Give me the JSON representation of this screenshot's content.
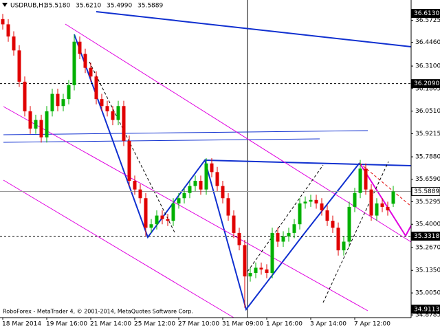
{
  "chart_data": {
    "type": "candlestick",
    "title": "USDRUB,H1",
    "info_labels": [
      "35.5180",
      "35.6210",
      "35.4990",
      "35.5889"
    ],
    "copyright": "RoboForex - MetaTrader 4, © 2001-2014, MetaQuotes Software Corp.",
    "categories": [
      "18 Mar 2014",
      null,
      null,
      null,
      null,
      null,
      null,
      null,
      "19 Mar 16:00",
      null,
      null,
      null,
      null,
      null,
      null,
      null,
      "21 Mar 14:00",
      null,
      null,
      null,
      null,
      null,
      null,
      null,
      "25 Mar 12:00",
      null,
      null,
      null,
      null,
      null,
      null,
      null,
      "27 Mar 10:00",
      null,
      null,
      null,
      null,
      null,
      null,
      null,
      "31 Mar 09:00",
      null,
      null,
      null,
      null,
      null,
      null,
      null,
      "1 Apr 16:00",
      null,
      null,
      null,
      null,
      null,
      null,
      null,
      "3 Apr 14:00",
      null,
      null,
      null,
      null,
      null,
      null,
      null,
      "7 Apr 12:00",
      null,
      null,
      null,
      null,
      null,
      null,
      null
    ],
    "open": [
      36.58,
      36.55,
      36.48,
      36.4,
      36.22,
      36.05,
      35.95,
      36.0,
      35.9,
      36.05,
      36.15,
      36.08,
      36.12,
      36.2,
      36.45,
      36.38,
      36.3,
      36.25,
      36.12,
      36.08,
      36.05,
      36.0,
      36.08,
      35.88,
      35.65,
      35.6,
      35.55,
      35.38,
      35.4,
      35.45,
      35.43,
      35.42,
      35.52,
      35.55,
      35.58,
      35.62,
      35.65,
      35.6,
      35.75,
      35.7,
      35.62,
      35.55,
      35.45,
      35.35,
      35.28,
      35.1,
      35.12,
      35.15,
      35.14,
      35.12,
      35.35,
      35.3,
      35.33,
      35.35,
      35.4,
      35.52,
      35.53,
      35.54,
      35.52,
      35.48,
      35.42,
      35.38,
      35.25,
      35.3,
      35.5,
      35.58,
      35.72,
      35.6,
      35.45,
      35.52,
      35.5,
      35.518
    ],
    "high": [
      36.61,
      36.58,
      36.51,
      36.43,
      36.25,
      36.08,
      36.03,
      36.03,
      36.08,
      36.18,
      36.18,
      36.15,
      36.23,
      36.49,
      36.48,
      36.41,
      36.33,
      36.28,
      36.15,
      36.11,
      36.08,
      36.11,
      36.11,
      35.91,
      35.68,
      35.63,
      35.58,
      35.43,
      35.48,
      35.48,
      35.46,
      35.55,
      35.58,
      35.61,
      35.65,
      35.68,
      35.68,
      35.78,
      35.78,
      35.73,
      35.65,
      35.58,
      35.48,
      35.38,
      35.31,
      35.15,
      35.18,
      35.18,
      35.17,
      35.38,
      35.38,
      35.36,
      35.38,
      35.43,
      35.55,
      35.56,
      35.57,
      35.57,
      35.55,
      35.51,
      35.45,
      35.41,
      35.33,
      35.53,
      35.61,
      35.77,
      35.75,
      35.63,
      35.55,
      35.55,
      35.53,
      35.621
    ],
    "low": [
      36.52,
      36.45,
      36.37,
      36.19,
      36.02,
      35.92,
      35.92,
      35.87,
      35.87,
      36.02,
      36.05,
      36.05,
      36.09,
      36.17,
      36.35,
      36.27,
      36.22,
      36.09,
      36.05,
      36.02,
      35.97,
      35.97,
      35.85,
      35.62,
      35.57,
      35.52,
      35.33,
      35.35,
      35.37,
      35.4,
      35.39,
      35.39,
      35.49,
      35.52,
      35.55,
      35.59,
      35.57,
      35.57,
      35.67,
      35.59,
      35.52,
      35.42,
      35.32,
      35.25,
      34.92,
      35.07,
      35.09,
      35.11,
      35.09,
      35.09,
      35.27,
      35.27,
      35.3,
      35.32,
      35.37,
      35.49,
      35.5,
      35.49,
      35.45,
      35.39,
      35.35,
      35.22,
      35.22,
      35.27,
      35.47,
      35.55,
      35.57,
      35.42,
      35.42,
      35.47,
      35.45,
      35.499
    ],
    "close": [
      36.55,
      36.48,
      36.4,
      36.22,
      36.05,
      35.95,
      36.0,
      35.9,
      36.05,
      36.15,
      36.08,
      36.12,
      36.2,
      36.45,
      36.38,
      36.3,
      36.25,
      36.12,
      36.08,
      36.05,
      36.0,
      36.08,
      35.88,
      35.65,
      35.6,
      35.55,
      35.38,
      35.4,
      35.45,
      35.43,
      35.42,
      35.52,
      35.55,
      35.58,
      35.62,
      35.65,
      35.6,
      35.75,
      35.7,
      35.62,
      35.55,
      35.45,
      35.35,
      35.28,
      35.1,
      35.12,
      35.15,
      35.14,
      35.12,
      35.35,
      35.3,
      35.33,
      35.35,
      35.4,
      35.52,
      35.53,
      35.54,
      35.52,
      35.48,
      35.42,
      35.38,
      35.25,
      35.3,
      35.5,
      35.58,
      35.72,
      35.6,
      35.45,
      35.52,
      35.5,
      35.48,
      35.5889
    ],
    "up_color": "#00b000",
    "down_color": "#e00000",
    "ylim": [
      34.863,
      36.69
    ],
    "yticks": [
      36.5725,
      {
        "value": 36.446,
        "label": "36.4460"
      },
      {
        "value": 36.31,
        "label": "36.3100"
      },
      36.1805,
      {
        "value": 36.051,
        "label": "36.0510"
      },
      35.9215,
      {
        "value": 35.788,
        "label": "35.7880"
      },
      {
        "value": 35.659,
        "label": "35.6590"
      },
      35.5295,
      {
        "value": 35.4,
        "label": "35.4000"
      },
      {
        "value": 35.267,
        "label": "35.2670"
      },
      {
        "value": 35.135,
        "label": "35.1350"
      },
      {
        "value": 35.005,
        "label": "35.0050"
      },
      34.8785
    ],
    "levels": [
      {
        "value": 36.613,
        "label": "36.6130"
      },
      {
        "value": 36.209,
        "label": "36.2090"
      },
      {
        "value": 35.5889,
        "label": "35.5889"
      },
      {
        "value": 35.3318,
        "label": "35.3318"
      },
      {
        "value": 34.9113,
        "label": "34.9113"
      }
    ],
    "grid": false
  }
}
